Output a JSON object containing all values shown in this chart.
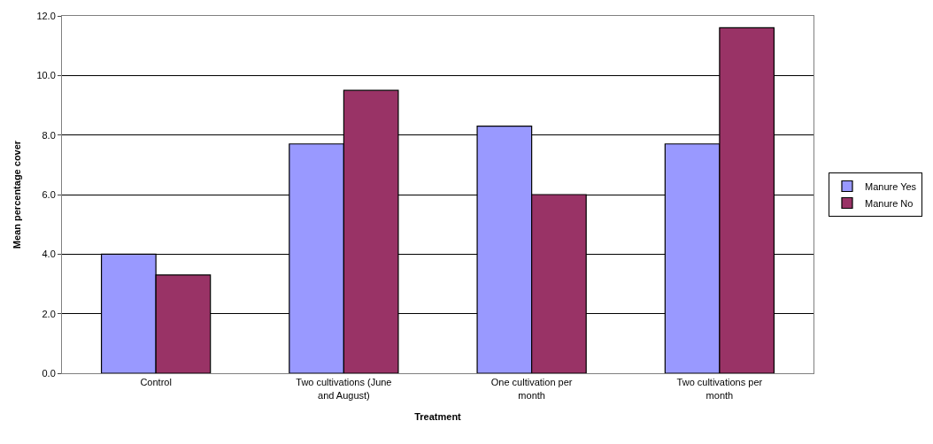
{
  "chart_data": {
    "type": "bar",
    "xlabel": "Treatment",
    "ylabel": "Mean percentage cover",
    "categories": [
      "Control",
      "Two cultivations (June and August)",
      "One cultivation per month",
      "Two cultivations per month"
    ],
    "series": [
      {
        "name": "Manure Yes",
        "color": "#9999ff",
        "values": [
          4.0,
          7.7,
          8.3,
          7.7
        ]
      },
      {
        "name": "Manure No",
        "color": "#993366",
        "values": [
          3.3,
          9.5,
          6.0,
          11.6
        ]
      }
    ],
    "ylim": [
      0,
      12
    ],
    "yticks": [
      {
        "value": 0,
        "label": "0.0"
      },
      {
        "value": 2,
        "label": "2.0"
      },
      {
        "value": 4,
        "label": "4.0"
      },
      {
        "value": 6,
        "label": "6.0"
      },
      {
        "value": 8,
        "label": "8.0"
      },
      {
        "value": 10,
        "label": "10.0"
      },
      {
        "value": 12,
        "label": "12.0"
      }
    ],
    "grid": "y",
    "legend": "right"
  }
}
